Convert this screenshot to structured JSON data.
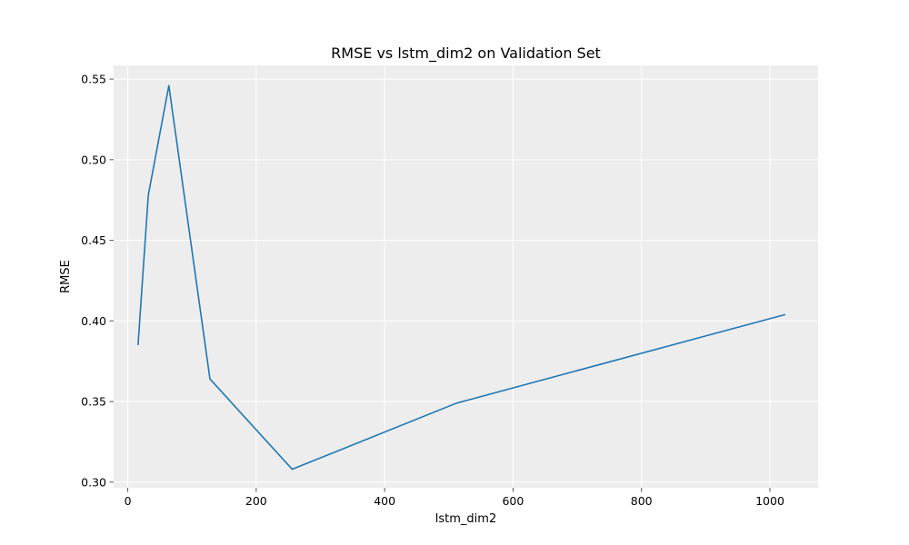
{
  "chart_data": {
    "type": "line",
    "title": "RMSE vs lstm_dim2 on Validation Set",
    "xlabel": "lstm_dim2",
    "ylabel": "RMSE",
    "xlim": [
      -22,
      1075
    ],
    "ylim": [
      0.2965,
      0.5585
    ],
    "xticks": [
      0,
      200,
      400,
      600,
      800,
      1000
    ],
    "xtick_labels": [
      "0",
      "200",
      "400",
      "600",
      "800",
      "1000"
    ],
    "yticks": [
      0.3,
      0.35,
      0.4,
      0.45,
      0.5,
      0.55
    ],
    "ytick_labels": [
      "0.30",
      "0.35",
      "0.40",
      "0.45",
      "0.50",
      "0.55"
    ],
    "grid": true,
    "background_color": "#ededed",
    "grid_color": "#ffffff",
    "series": [
      {
        "color": "#1f77b4",
        "x": [
          16,
          32,
          64,
          128,
          256,
          512,
          1024
        ],
        "y": [
          0.385,
          0.478,
          0.546,
          0.364,
          0.308,
          0.349,
          0.404
        ]
      }
    ]
  }
}
